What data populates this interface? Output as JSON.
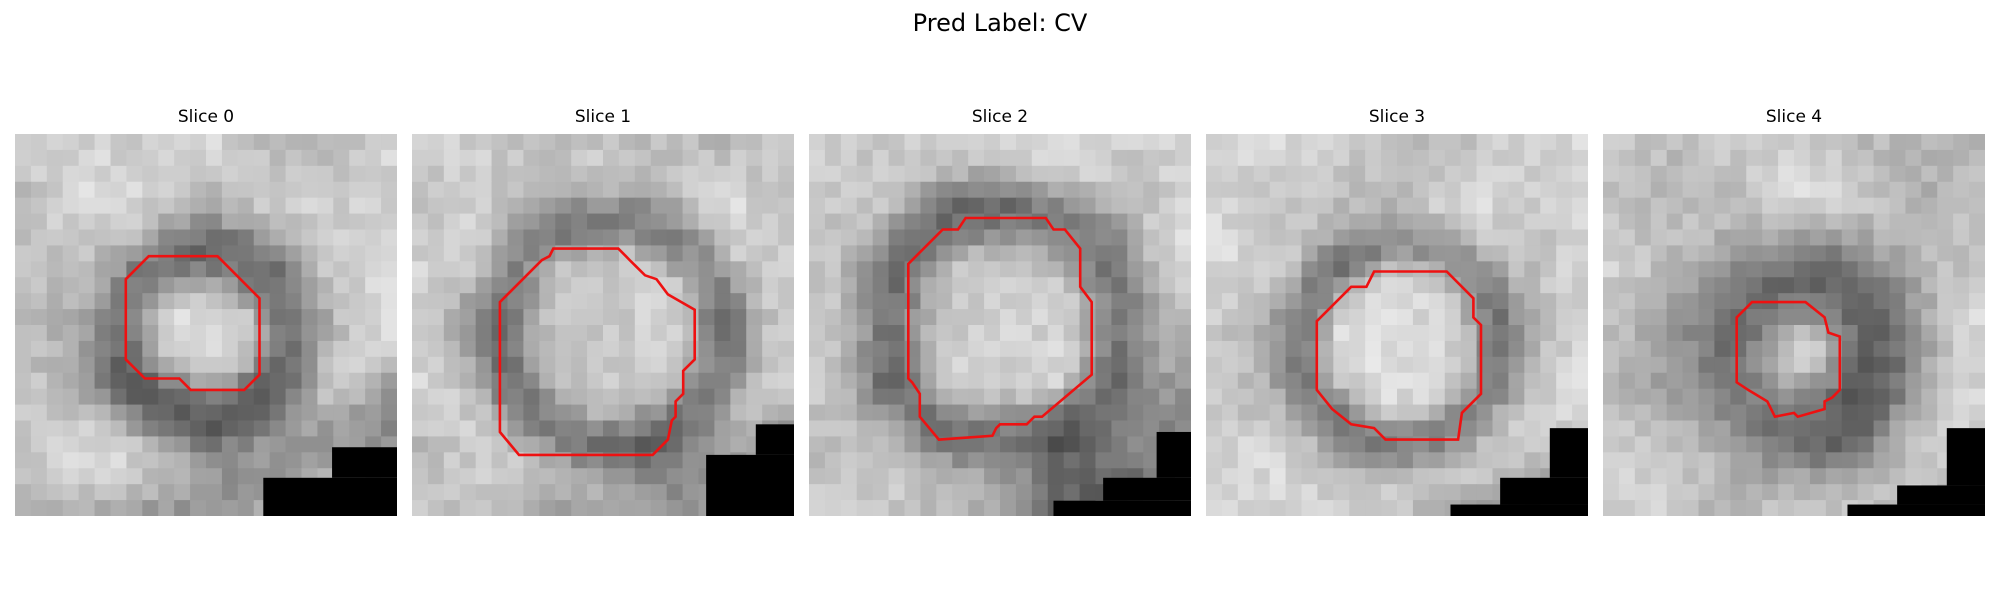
{
  "figure": {
    "title": "Pred Label: CV"
  },
  "panels": [
    {
      "title": "Slice 0"
    },
    {
      "title": "Slice 1"
    },
    {
      "title": "Slice 2"
    },
    {
      "title": "Slice 3"
    },
    {
      "title": "Slice 4"
    }
  ],
  "colors": {
    "contour": "#ee1111",
    "background": "#ffffff",
    "mask": "#000000"
  }
}
